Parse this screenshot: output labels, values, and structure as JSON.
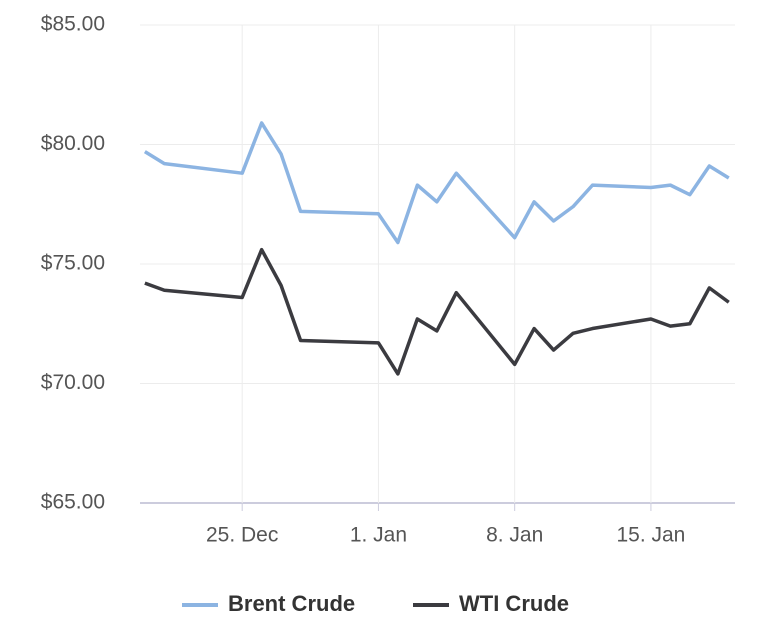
{
  "chart_data": {
    "type": "line",
    "x": [
      20,
      21,
      25,
      26,
      27,
      28,
      32,
      33,
      34,
      35,
      36,
      39,
      40,
      41,
      42,
      43,
      46,
      47,
      48,
      49,
      50
    ],
    "series": [
      {
        "name": "Brent Crude",
        "color": "#8cb4e2",
        "values": [
          79.7,
          79.2,
          78.8,
          80.9,
          79.6,
          77.2,
          77.1,
          75.9,
          78.3,
          77.6,
          78.8,
          76.1,
          77.6,
          76.8,
          77.4,
          78.3,
          78.2,
          78.3,
          77.9,
          79.1,
          78.6
        ]
      },
      {
        "name": "WTI Crude",
        "color": "#3b3b40",
        "values": [
          74.2,
          73.9,
          73.6,
          75.6,
          74.1,
          71.8,
          71.7,
          70.4,
          72.7,
          72.2,
          73.8,
          70.8,
          72.3,
          71.4,
          72.1,
          72.3,
          72.7,
          72.4,
          72.5,
          74.0,
          73.4
        ]
      }
    ],
    "xlim": [
      19.75,
      50.32
    ],
    "xticks": [
      {
        "value": 25,
        "label": "25. Dec"
      },
      {
        "value": 32,
        "label": "1. Jan"
      },
      {
        "value": 39,
        "label": "8. Jan"
      },
      {
        "value": 46,
        "label": "15. Jan"
      }
    ],
    "ylim": [
      65,
      85
    ],
    "yticks": [
      {
        "value": 65,
        "label": "$65.00"
      },
      {
        "value": 70,
        "label": "$70.00"
      },
      {
        "value": 75,
        "label": "$75.00"
      },
      {
        "value": 80,
        "label": "$80.00"
      },
      {
        "value": 85,
        "label": "$85.00"
      }
    ],
    "grid": true,
    "legend": "bottom"
  }
}
